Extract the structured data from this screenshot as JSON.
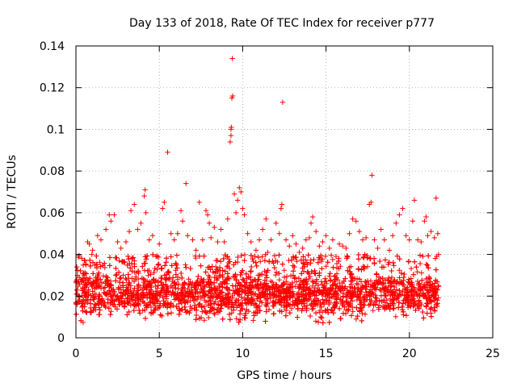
{
  "chart_data": {
    "type": "scatter",
    "title": "Day 133 of 2018, Rate Of TEC Index for receiver p777",
    "xlabel": "GPS time / hours",
    "ylabel": "ROTI / TECUs",
    "xlim": [
      0,
      25
    ],
    "ylim": [
      0,
      0.14
    ],
    "x_ticks": [
      0,
      5,
      10,
      15,
      20,
      25
    ],
    "y_ticks": [
      0,
      0.02,
      0.04,
      0.06,
      0.08,
      0.1,
      0.12,
      0.14
    ],
    "x_tick_labels": [
      "0",
      "5",
      "10",
      "15",
      "20",
      "25"
    ],
    "y_tick_labels": [
      "0",
      "0.02",
      "0.04",
      "0.06",
      "0.08",
      "0.1",
      "0.12",
      "0.14"
    ],
    "grid": true,
    "marker": "+",
    "marker_color": "#ff0000",
    "data_range_x": [
      0,
      21.75
    ],
    "series": [
      {
        "name": "ROTI",
        "color": "#ff0000",
        "points": [
          [
            0.05,
            0.034
          ],
          [
            0.1,
            0.021
          ],
          [
            0.2,
            0.029
          ],
          [
            0.3,
            0.028
          ],
          [
            0.4,
            0.024
          ],
          [
            0.5,
            0.03
          ],
          [
            0.6,
            0.035
          ],
          [
            0.7,
            0.046
          ],
          [
            0.8,
            0.045
          ],
          [
            1.0,
            0.042
          ],
          [
            1.3,
            0.049
          ],
          [
            1.5,
            0.047
          ],
          [
            1.8,
            0.052
          ],
          [
            2.0,
            0.059
          ],
          [
            2.1,
            0.056
          ],
          [
            2.3,
            0.059
          ],
          [
            2.5,
            0.046
          ],
          [
            2.7,
            0.043
          ],
          [
            3.0,
            0.046
          ],
          [
            3.2,
            0.051
          ],
          [
            3.3,
            0.061
          ],
          [
            3.5,
            0.064
          ],
          [
            3.7,
            0.052
          ],
          [
            3.9,
            0.055
          ],
          [
            4.1,
            0.068
          ],
          [
            4.15,
            0.071
          ],
          [
            4.2,
            0.06
          ],
          [
            4.4,
            0.047
          ],
          [
            4.6,
            0.049
          ],
          [
            4.8,
            0.039
          ],
          [
            5.0,
            0.045
          ],
          [
            5.2,
            0.062
          ],
          [
            5.3,
            0.065
          ],
          [
            5.5,
            0.089
          ],
          [
            5.7,
            0.05
          ],
          [
            5.9,
            0.047
          ],
          [
            6.1,
            0.05
          ],
          [
            6.3,
            0.061
          ],
          [
            6.4,
            0.056
          ],
          [
            6.6,
            0.074
          ],
          [
            6.7,
            0.049
          ],
          [
            7.0,
            0.047
          ],
          [
            7.2,
            0.042
          ],
          [
            7.4,
            0.065
          ],
          [
            7.6,
            0.047
          ],
          [
            7.8,
            0.061
          ],
          [
            7.9,
            0.059
          ],
          [
            8.0,
            0.055
          ],
          [
            8.1,
            0.048
          ],
          [
            8.3,
            0.053
          ],
          [
            8.5,
            0.046
          ],
          [
            8.7,
            0.052
          ],
          [
            8.9,
            0.046
          ],
          [
            9.1,
            0.057
          ],
          [
            9.25,
            0.094
          ],
          [
            9.3,
            0.097
          ],
          [
            9.3,
            0.1
          ],
          [
            9.32,
            0.101
          ],
          [
            9.35,
            0.115
          ],
          [
            9.4,
            0.116
          ],
          [
            9.38,
            0.134
          ],
          [
            9.5,
            0.069
          ],
          [
            9.6,
            0.06
          ],
          [
            9.7,
            0.066
          ],
          [
            9.8,
            0.072
          ],
          [
            9.9,
            0.07
          ],
          [
            10.0,
            0.062
          ],
          [
            10.1,
            0.059
          ],
          [
            10.3,
            0.05
          ],
          [
            10.5,
            0.046
          ],
          [
            10.8,
            0.042
          ],
          [
            11.0,
            0.047
          ],
          [
            11.2,
            0.052
          ],
          [
            11.4,
            0.057
          ],
          [
            11.5,
            0.041
          ],
          [
            11.7,
            0.047
          ],
          [
            12.0,
            0.055
          ],
          [
            12.2,
            0.05
          ],
          [
            12.3,
            0.062
          ],
          [
            12.35,
            0.064
          ],
          [
            12.4,
            0.113
          ],
          [
            12.6,
            0.047
          ],
          [
            12.8,
            0.044
          ],
          [
            13.0,
            0.049
          ],
          [
            13.2,
            0.045
          ],
          [
            13.4,
            0.041
          ],
          [
            13.6,
            0.043
          ],
          [
            13.8,
            0.047
          ],
          [
            14.0,
            0.048
          ],
          [
            14.1,
            0.055
          ],
          [
            14.2,
            0.058
          ],
          [
            14.4,
            0.051
          ],
          [
            14.6,
            0.044
          ],
          [
            14.8,
            0.046
          ],
          [
            15.0,
            0.049
          ],
          [
            15.2,
            0.043
          ],
          [
            15.4,
            0.047
          ],
          [
            15.6,
            0.039
          ],
          [
            15.8,
            0.045
          ],
          [
            16.0,
            0.044
          ],
          [
            16.2,
            0.043
          ],
          [
            16.4,
            0.05
          ],
          [
            16.6,
            0.057
          ],
          [
            16.8,
            0.056
          ],
          [
            17.0,
            0.051
          ],
          [
            17.2,
            0.047
          ],
          [
            17.4,
            0.048
          ],
          [
            17.6,
            0.064
          ],
          [
            17.7,
            0.065
          ],
          [
            17.75,
            0.078
          ],
          [
            17.9,
            0.047
          ],
          [
            18.1,
            0.043
          ],
          [
            18.3,
            0.052
          ],
          [
            18.5,
            0.047
          ],
          [
            18.8,
            0.042
          ],
          [
            19.0,
            0.049
          ],
          [
            19.2,
            0.055
          ],
          [
            19.4,
            0.059
          ],
          [
            19.6,
            0.062
          ],
          [
            19.8,
            0.049
          ],
          [
            20.0,
            0.047
          ],
          [
            20.2,
            0.056
          ],
          [
            20.3,
            0.066
          ],
          [
            20.5,
            0.047
          ],
          [
            20.7,
            0.046
          ],
          [
            20.9,
            0.056
          ],
          [
            21.0,
            0.058
          ],
          [
            21.1,
            0.049
          ],
          [
            21.3,
            0.051
          ],
          [
            21.5,
            0.048
          ],
          [
            21.6,
            0.067
          ],
          [
            21.7,
            0.05
          ],
          [
            21.75,
            0.04
          ]
        ],
        "dense_band": {
          "x_range": [
            0,
            21.75
          ],
          "min": 0.006,
          "max": 0.04,
          "typical": 0.02,
          "point_density_per_hour": 170
        }
      }
    ]
  }
}
